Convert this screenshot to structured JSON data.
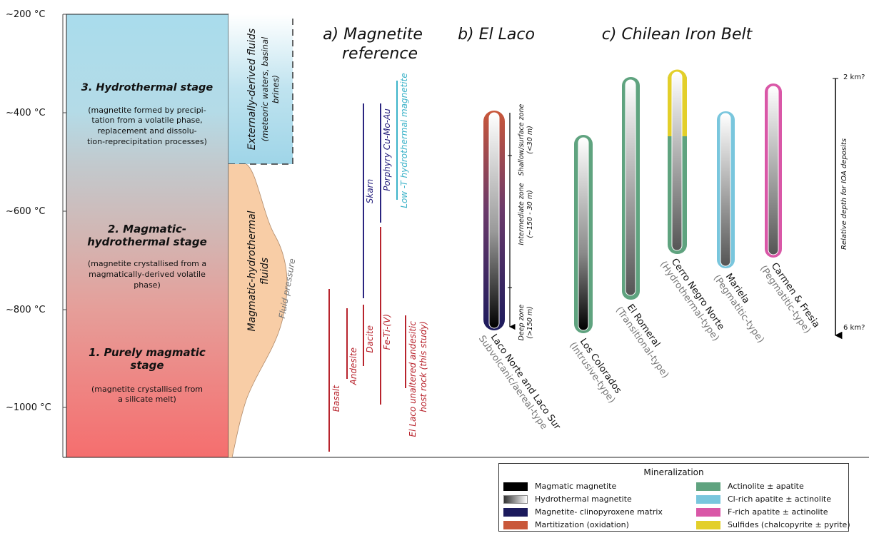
{
  "temps": [
    "~200 °C",
    "~400 °C",
    "~600 °C",
    "~800 °C",
    "~1000 °C"
  ],
  "stages": {
    "s3": {
      "title": "3. Hydrothermal stage",
      "desc": [
        "(magnetite formed by precipi-",
        "tation from a volatile phase,",
        "replacement and dissolu-",
        "tion-reprecipitation processes)"
      ]
    },
    "s2": {
      "title": [
        "2. Magmatic-",
        "hydrothermal stage"
      ],
      "desc": [
        "(magnetite crystallised from a",
        "magmatically-derived volatile",
        "phase)"
      ]
    },
    "s1": {
      "title": [
        "1. Purely magmatic",
        "stage"
      ],
      "desc": [
        "(magnetite crystallised from",
        "a silicate melt)"
      ]
    }
  },
  "fluids": {
    "external": [
      "Externally-derived fluids",
      "(meteoric waters, basinal",
      "brines)"
    ],
    "magmatic": [
      "Magmatic-hydrothermal",
      "fluids"
    ],
    "pressure": "Fluid pressure"
  },
  "sections": {
    "a": [
      "a) Magnetite",
      "reference"
    ],
    "b": "b) El Laco",
    "c": "c) Chilean Iron Belt"
  },
  "reference_lines": {
    "basalt": "Basalt",
    "andesite": "Andesite",
    "dacite": "Dacite",
    "fetiv": "Fe-Ti-(V)",
    "host": [
      "El Laco unaltered andesitic",
      "host rock (this study)"
    ],
    "skarn": "Skarn",
    "porphyry": "Porphyry Cu-Mo-Au",
    "lowt": "Low -T hydrothermal magnetite"
  },
  "laco": {
    "name": "Laco Norte and Laco Sur",
    "type": "Subvolcanic/aereal-type",
    "zones": {
      "shallow": [
        "Shallow/surface zone",
        "(<30 m)"
      ],
      "intermediate": [
        "Intermediate  zone",
        "(~150 - 30 m)"
      ],
      "deep": [
        "Deep zone",
        "(>150 m)"
      ]
    }
  },
  "deposits": {
    "colorados": {
      "name": "Los Colorados",
      "type": "(Intrusive-type)"
    },
    "romeral": {
      "name": "El Romeral",
      "type": "(Transitional-type)"
    },
    "cerro": {
      "name": "Cerro Negro Norte",
      "type": "(Hydrothermal-type)"
    },
    "mariela": {
      "name": "Mariela",
      "type": "(Pegmatitic-type)"
    },
    "carmen": {
      "name": "Carmen & Fresia",
      "type": "(Pegmatitic-type)"
    }
  },
  "depth_axis": {
    "top": "2 km?",
    "bottom": "6 km?",
    "label": "Relative depth for IOA deposits"
  },
  "legend": {
    "title": "Mineralization",
    "items": [
      {
        "label": "Magmatic magnetite",
        "color": "#000000"
      },
      {
        "label": "Hydrothermal magnetite",
        "color": "gradient"
      },
      {
        "label": "Magnetite- clinopyroxene matrix",
        "color": "#1b1a5c"
      },
      {
        "label": "Martitization (oxidation)",
        "color": "#c9573a"
      },
      {
        "label": "Actinolite ± apatite",
        "color": "#5fa37f"
      },
      {
        "label": "Cl-rich apatite ± actinolite",
        "color": "#79c6dd"
      },
      {
        "label": "F-rich apatite ±  actinolite",
        "color": "#d957a7"
      },
      {
        "label": "Sulfides (chalcopyrite ± pyrite)",
        "color": "#e3cf2a"
      }
    ]
  },
  "colors": {
    "red_line": "#b8242d",
    "blue_line": "#2b2580",
    "cyan_line": "#3db3c9",
    "actinolite": "#5fa37f",
    "cl_apatite": "#79c6dd",
    "f_apatite": "#d957a7",
    "sulfides": "#e3cf2a"
  }
}
